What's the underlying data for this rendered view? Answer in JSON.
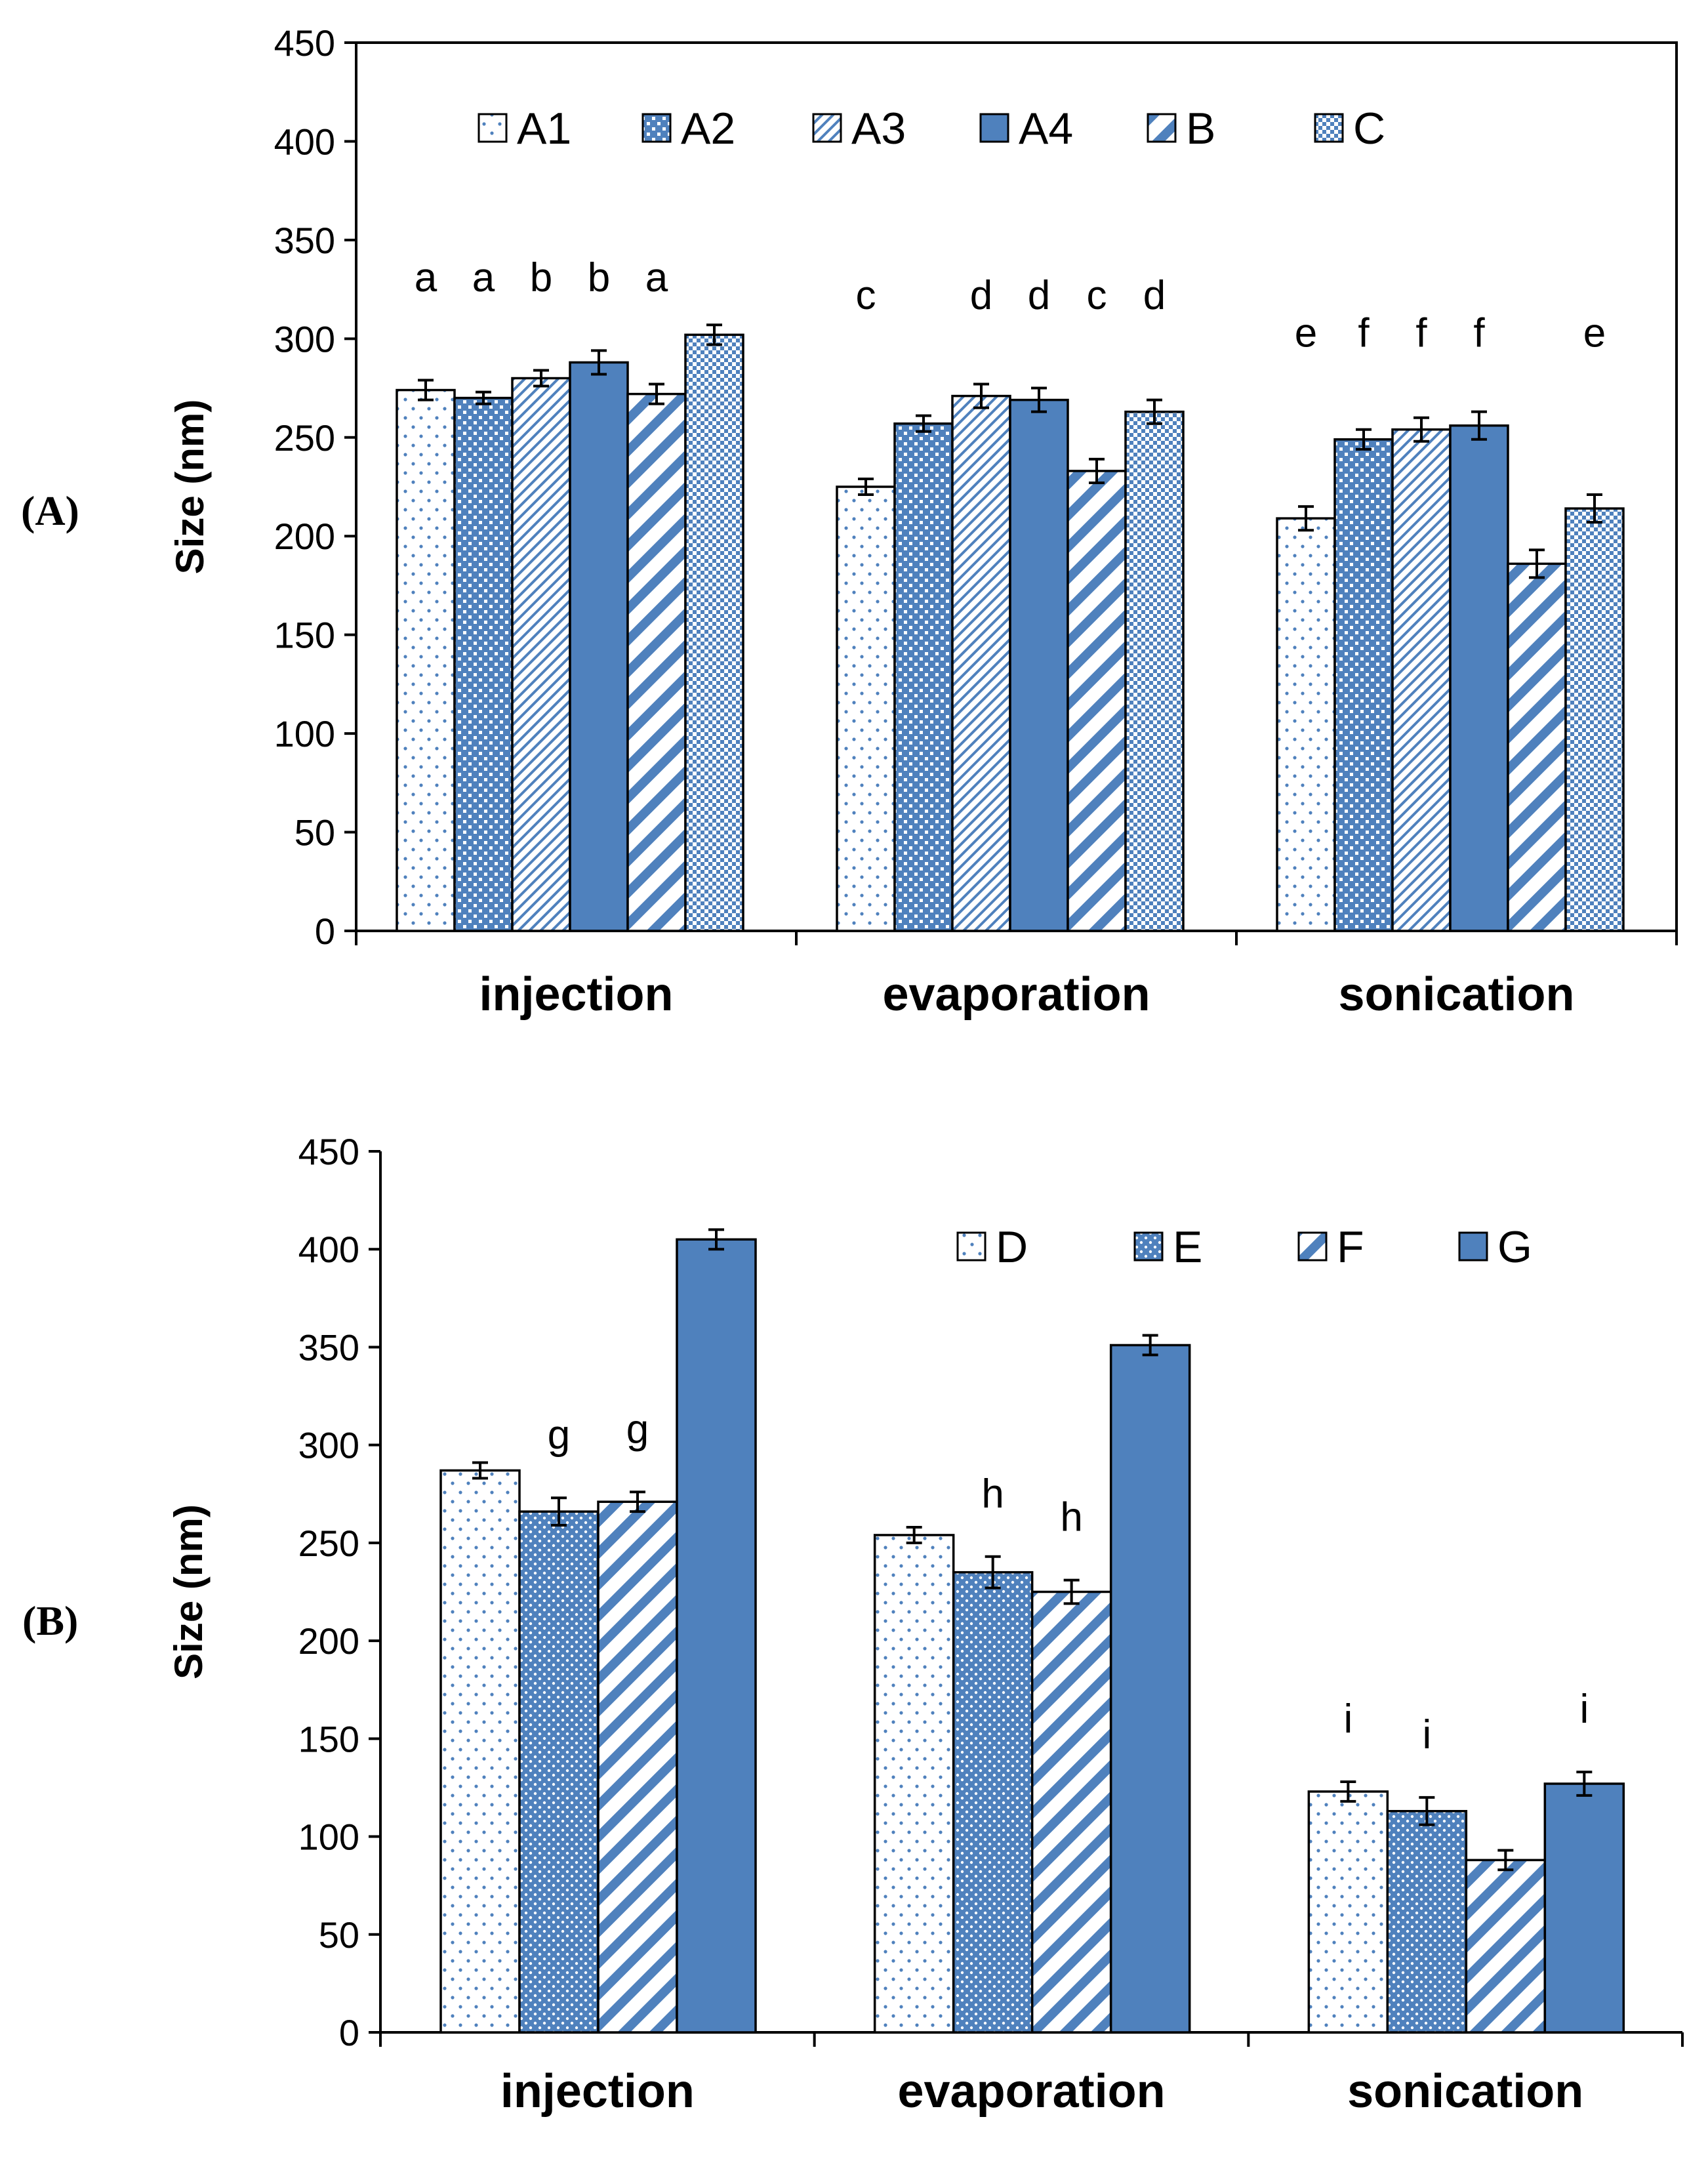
{
  "chart_data": [
    {
      "panel_label": "(A)",
      "type": "bar",
      "ylabel": "Size (nm)",
      "ylim": [
        0,
        450
      ],
      "yticks": [
        0,
        50,
        100,
        150,
        200,
        250,
        300,
        350,
        400,
        450
      ],
      "grid": false,
      "legend_position": "top",
      "categories": [
        "injection",
        "evaporation",
        "sonication"
      ],
      "series": [
        {
          "name": "A1",
          "pattern": "dots",
          "values": [
            274,
            225,
            209
          ],
          "errors": [
            5,
            4,
            6
          ],
          "labels": [
            "a",
            "c",
            "e"
          ]
        },
        {
          "name": "A2",
          "pattern": "checks",
          "values": [
            270,
            257,
            249
          ],
          "errors": [
            3,
            4,
            5
          ],
          "labels": [
            "a",
            "",
            "f"
          ]
        },
        {
          "name": "A3",
          "pattern": "thin-diag",
          "values": [
            280,
            271,
            254
          ],
          "errors": [
            4,
            6,
            6
          ],
          "labels": [
            "b",
            "d",
            "f"
          ]
        },
        {
          "name": "A4",
          "pattern": "solid",
          "values": [
            288,
            269,
            256
          ],
          "errors": [
            6,
            6,
            7
          ],
          "labels": [
            "b",
            "d",
            "f"
          ]
        },
        {
          "name": "B",
          "pattern": "wide-diag",
          "values": [
            272,
            233,
            186
          ],
          "errors": [
            5,
            6,
            7
          ],
          "labels": [
            "a",
            "c",
            ""
          ]
        },
        {
          "name": "C",
          "pattern": "checker",
          "values": [
            302,
            263,
            214
          ],
          "errors": [
            5,
            6,
            7
          ],
          "labels": [
            "",
            "d",
            "e"
          ]
        }
      ]
    },
    {
      "panel_label": "(B)",
      "type": "bar",
      "ylabel": "Size (nm)",
      "ylim": [
        0,
        450
      ],
      "yticks": [
        0,
        50,
        100,
        150,
        200,
        250,
        300,
        350,
        400,
        450
      ],
      "grid": false,
      "legend_position": "top-right",
      "categories": [
        "injection",
        "evaporation",
        "sonication"
      ],
      "series": [
        {
          "name": "D",
          "pattern": "dots",
          "values": [
            287,
            254,
            123
          ],
          "errors": [
            4,
            4,
            5
          ],
          "labels": [
            "",
            "",
            "i"
          ]
        },
        {
          "name": "E",
          "pattern": "dense-dots",
          "values": [
            266,
            235,
            113
          ],
          "errors": [
            7,
            8,
            7
          ],
          "labels": [
            "g",
            "h",
            "i"
          ]
        },
        {
          "name": "F",
          "pattern": "wide-diag",
          "values": [
            271,
            225,
            88
          ],
          "errors": [
            5,
            6,
            5
          ],
          "labels": [
            "g",
            "h",
            ""
          ]
        },
        {
          "name": "G",
          "pattern": "solid",
          "values": [
            405,
            351,
            127
          ],
          "errors": [
            5,
            5,
            6
          ],
          "labels": [
            "",
            "",
            "i"
          ]
        }
      ]
    }
  ],
  "colors": {
    "bar_fill": "#4f81bd",
    "bar_border": "#000000",
    "pattern_light": "#ffffff"
  }
}
